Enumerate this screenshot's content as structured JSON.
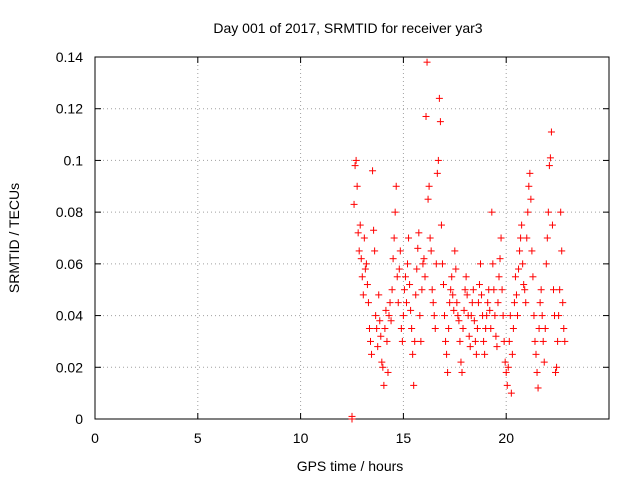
{
  "chart_data": {
    "type": "scatter",
    "title": "Day 001 of 2017, SRMTID for receiver yar3",
    "xlabel": "GPS time / hours",
    "ylabel": "SRMTID / TECUs",
    "xlim": [
      0,
      25
    ],
    "ylim": [
      0,
      0.14
    ],
    "grid": true,
    "marker": "+",
    "color": "#ff0000",
    "xticks": [
      0,
      5,
      10,
      15,
      20
    ],
    "xtick_labels": [
      "0",
      "5",
      "10",
      "15",
      "20"
    ],
    "yticks": [
      0,
      0.02,
      0.04,
      0.06,
      0.08,
      0.1,
      0.12,
      0.14
    ],
    "ytick_labels": [
      "0",
      "0.02",
      "0.04",
      "0.06",
      "0.08",
      "0.1",
      "0.12",
      "0.14"
    ],
    "series": [
      {
        "name": "SRMTID",
        "points": [
          [
            12.5,
            0.0
          ],
          [
            12.5,
            0.001
          ],
          [
            12.6,
            0.083
          ],
          [
            12.65,
            0.098
          ],
          [
            12.7,
            0.1
          ],
          [
            12.75,
            0.09
          ],
          [
            12.8,
            0.072
          ],
          [
            12.85,
            0.065
          ],
          [
            12.9,
            0.075
          ],
          [
            12.95,
            0.062
          ],
          [
            13.0,
            0.055
          ],
          [
            13.05,
            0.048
          ],
          [
            13.1,
            0.07
          ],
          [
            13.15,
            0.058
          ],
          [
            13.2,
            0.06
          ],
          [
            13.25,
            0.052
          ],
          [
            13.3,
            0.045
          ],
          [
            13.35,
            0.035
          ],
          [
            13.4,
            0.03
          ],
          [
            13.45,
            0.025
          ],
          [
            13.5,
            0.096
          ],
          [
            13.55,
            0.073
          ],
          [
            13.6,
            0.065
          ],
          [
            13.65,
            0.04
          ],
          [
            13.7,
            0.035
          ],
          [
            13.75,
            0.028
          ],
          [
            13.8,
            0.048
          ],
          [
            13.85,
            0.038
          ],
          [
            13.9,
            0.032
          ],
          [
            13.95,
            0.022
          ],
          [
            14.0,
            0.02
          ],
          [
            14.05,
            0.013
          ],
          [
            14.1,
            0.035
          ],
          [
            14.15,
            0.042
          ],
          [
            14.2,
            0.03
          ],
          [
            14.25,
            0.018
          ],
          [
            14.3,
            0.04
          ],
          [
            14.35,
            0.045
          ],
          [
            14.4,
            0.038
          ],
          [
            14.45,
            0.05
          ],
          [
            14.5,
            0.062
          ],
          [
            14.55,
            0.07
          ],
          [
            14.6,
            0.08
          ],
          [
            14.65,
            0.09
          ],
          [
            14.7,
            0.055
          ],
          [
            14.75,
            0.045
          ],
          [
            14.8,
            0.058
          ],
          [
            14.85,
            0.065
          ],
          [
            14.9,
            0.035
          ],
          [
            14.95,
            0.03
          ],
          [
            15.0,
            0.04
          ],
          [
            15.05,
            0.05
          ],
          [
            15.1,
            0.055
          ],
          [
            15.15,
            0.045
          ],
          [
            15.2,
            0.06
          ],
          [
            15.25,
            0.07
          ],
          [
            15.3,
            0.052
          ],
          [
            15.35,
            0.042
          ],
          [
            15.4,
            0.035
          ],
          [
            15.45,
            0.025
          ],
          [
            15.5,
            0.013
          ],
          [
            15.55,
            0.03
          ],
          [
            15.6,
            0.048
          ],
          [
            15.65,
            0.058
          ],
          [
            15.7,
            0.066
          ],
          [
            15.75,
            0.072
          ],
          [
            15.8,
            0.04
          ],
          [
            15.85,
            0.03
          ],
          [
            15.9,
            0.05
          ],
          [
            15.95,
            0.06
          ],
          [
            16.0,
            0.062
          ],
          [
            16.05,
            0.055
          ],
          [
            16.1,
            0.117
          ],
          [
            16.15,
            0.138
          ],
          [
            16.2,
            0.085
          ],
          [
            16.25,
            0.09
          ],
          [
            16.3,
            0.07
          ],
          [
            16.35,
            0.065
          ],
          [
            16.4,
            0.05
          ],
          [
            16.45,
            0.045
          ],
          [
            16.5,
            0.04
          ],
          [
            16.55,
            0.035
          ],
          [
            16.6,
            0.06
          ],
          [
            16.65,
            0.095
          ],
          [
            16.7,
            0.1
          ],
          [
            16.75,
            0.124
          ],
          [
            16.8,
            0.115
          ],
          [
            16.85,
            0.075
          ],
          [
            16.9,
            0.06
          ],
          [
            16.95,
            0.052
          ],
          [
            17.0,
            0.04
          ],
          [
            17.05,
            0.03
          ],
          [
            17.1,
            0.025
          ],
          [
            17.15,
            0.018
          ],
          [
            17.2,
            0.035
          ],
          [
            17.25,
            0.045
          ],
          [
            17.3,
            0.05
          ],
          [
            17.35,
            0.055
          ],
          [
            17.4,
            0.048
          ],
          [
            17.45,
            0.042
          ],
          [
            17.5,
            0.065
          ],
          [
            17.55,
            0.058
          ],
          [
            17.6,
            0.045
          ],
          [
            17.65,
            0.04
          ],
          [
            17.7,
            0.038
          ],
          [
            17.75,
            0.03
          ],
          [
            17.8,
            0.022
          ],
          [
            17.85,
            0.018
          ],
          [
            17.9,
            0.035
          ],
          [
            17.95,
            0.042
          ],
          [
            18.0,
            0.05
          ],
          [
            18.05,
            0.055
          ],
          [
            18.1,
            0.048
          ],
          [
            18.15,
            0.04
          ],
          [
            18.2,
            0.032
          ],
          [
            18.25,
            0.028
          ],
          [
            18.3,
            0.04
          ],
          [
            18.35,
            0.045
          ],
          [
            18.4,
            0.05
          ],
          [
            18.45,
            0.038
          ],
          [
            18.5,
            0.03
          ],
          [
            18.55,
            0.025
          ],
          [
            18.6,
            0.035
          ],
          [
            18.65,
            0.045
          ],
          [
            18.7,
            0.052
          ],
          [
            18.75,
            0.06
          ],
          [
            18.8,
            0.048
          ],
          [
            18.85,
            0.04
          ],
          [
            18.9,
            0.03
          ],
          [
            18.95,
            0.025
          ],
          [
            19.0,
            0.035
          ],
          [
            19.05,
            0.04
          ],
          [
            19.1,
            0.045
          ],
          [
            19.15,
            0.05
          ],
          [
            19.2,
            0.042
          ],
          [
            19.25,
            0.035
          ],
          [
            19.3,
            0.08
          ],
          [
            19.35,
            0.06
          ],
          [
            19.4,
            0.05
          ],
          [
            19.45,
            0.04
          ],
          [
            19.5,
            0.032
          ],
          [
            19.55,
            0.028
          ],
          [
            19.6,
            0.045
          ],
          [
            19.65,
            0.055
          ],
          [
            19.7,
            0.062
          ],
          [
            19.75,
            0.07
          ],
          [
            19.8,
            0.05
          ],
          [
            19.85,
            0.04
          ],
          [
            19.9,
            0.03
          ],
          [
            19.95,
            0.022
          ],
          [
            20.0,
            0.018
          ],
          [
            20.05,
            0.013
          ],
          [
            20.1,
            0.02
          ],
          [
            20.15,
            0.03
          ],
          [
            20.2,
            0.04
          ],
          [
            20.25,
            0.01
          ],
          [
            20.3,
            0.025
          ],
          [
            20.35,
            0.035
          ],
          [
            20.4,
            0.045
          ],
          [
            20.45,
            0.055
          ],
          [
            20.5,
            0.048
          ],
          [
            20.55,
            0.04
          ],
          [
            20.6,
            0.058
          ],
          [
            20.65,
            0.065
          ],
          [
            20.7,
            0.07
          ],
          [
            20.75,
            0.075
          ],
          [
            20.8,
            0.06
          ],
          [
            20.85,
            0.052
          ],
          [
            20.9,
            0.05
          ],
          [
            20.95,
            0.045
          ],
          [
            21.0,
            0.07
          ],
          [
            21.05,
            0.08
          ],
          [
            21.1,
            0.09
          ],
          [
            21.15,
            0.095
          ],
          [
            21.2,
            0.085
          ],
          [
            21.25,
            0.065
          ],
          [
            21.3,
            0.055
          ],
          [
            21.35,
            0.04
          ],
          [
            21.4,
            0.03
          ],
          [
            21.45,
            0.025
          ],
          [
            21.5,
            0.018
          ],
          [
            21.55,
            0.012
          ],
          [
            21.6,
            0.035
          ],
          [
            21.65,
            0.045
          ],
          [
            21.7,
            0.05
          ],
          [
            21.75,
            0.04
          ],
          [
            21.8,
            0.03
          ],
          [
            21.85,
            0.022
          ],
          [
            21.9,
            0.035
          ],
          [
            21.95,
            0.06
          ],
          [
            22.0,
            0.07
          ],
          [
            22.05,
            0.08
          ],
          [
            22.1,
            0.098
          ],
          [
            22.15,
            0.101
          ],
          [
            22.2,
            0.111
          ],
          [
            22.25,
            0.075
          ],
          [
            22.3,
            0.05
          ],
          [
            22.35,
            0.04
          ],
          [
            22.4,
            0.018
          ],
          [
            22.45,
            0.02
          ],
          [
            22.5,
            0.03
          ],
          [
            22.55,
            0.04
          ],
          [
            22.6,
            0.05
          ],
          [
            22.65,
            0.08
          ],
          [
            22.7,
            0.065
          ],
          [
            22.75,
            0.045
          ],
          [
            22.8,
            0.035
          ],
          [
            22.85,
            0.03
          ]
        ]
      }
    ]
  }
}
